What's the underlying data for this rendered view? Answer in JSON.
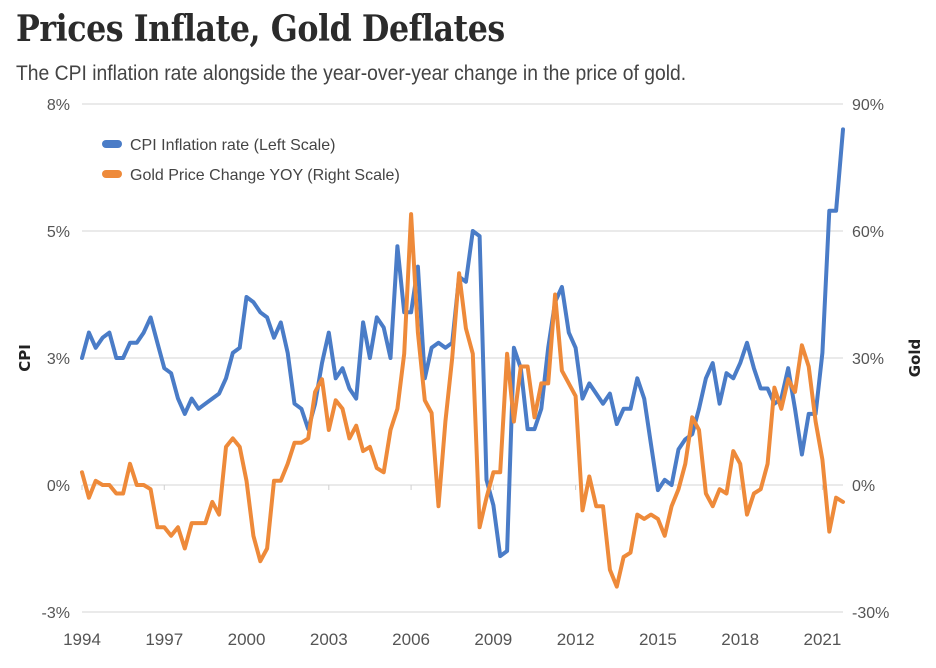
{
  "header": {
    "title": "Prices Inflate, Gold Deflates",
    "subtitle": "The CPI inflation rate alongside the year-over-year change in the price of gold."
  },
  "colors": {
    "cpi": "#4a7cc7",
    "gold": "#ee8a3a",
    "grid": "#dddddd"
  },
  "chart_data": {
    "type": "line",
    "title": "Prices Inflate, Gold Deflates",
    "subtitle": "The CPI inflation rate alongside the year-over-year change in the price of gold.",
    "xlabel": "",
    "ylabel": "CPI",
    "ylabel_right": "Gold",
    "x_start": 1994,
    "x_end": 2021.75,
    "frequency": "quarterly",
    "x_ticks": [
      "1994",
      "1997",
      "2000",
      "2003",
      "2006",
      "2009",
      "2012",
      "2015",
      "2018",
      "2021"
    ],
    "x_tick_values": [
      1994,
      1997,
      2000,
      2003,
      2006,
      2009,
      2012,
      2015,
      2018,
      2021
    ],
    "y_left": {
      "ylim": [
        -2.5,
        7.5
      ],
      "ticks": [
        7.5,
        5,
        2.5,
        0,
        -2.5
      ],
      "tick_labels": [
        "8%",
        "5%",
        "3%",
        "0%",
        "-3%"
      ]
    },
    "y_right": {
      "ylim": [
        -30,
        90
      ],
      "ticks": [
        90,
        60,
        30,
        0,
        -30
      ],
      "tick_labels": [
        "90%",
        "60%",
        "30%",
        "0%",
        "-30%"
      ]
    },
    "grid": true,
    "legend": "top-left",
    "series": [
      {
        "name": "CPI Inflation rate (Left Scale)",
        "axis": "left",
        "values": [
          2.5,
          3.0,
          2.7,
          2.9,
          3.0,
          2.5,
          2.5,
          2.8,
          2.8,
          3.0,
          3.3,
          2.8,
          2.3,
          2.2,
          1.7,
          1.4,
          1.7,
          1.5,
          1.6,
          1.7,
          1.8,
          2.1,
          2.6,
          2.7,
          3.7,
          3.6,
          3.4,
          3.3,
          2.9,
          3.2,
          2.6,
          1.6,
          1.5,
          1.1,
          1.6,
          2.4,
          3.0,
          2.1,
          2.3,
          1.9,
          1.7,
          3.2,
          2.5,
          3.3,
          3.1,
          2.5,
          4.7,
          3.4,
          3.4,
          4.3,
          2.1,
          2.7,
          2.8,
          2.7,
          2.8,
          4.1,
          4.0,
          5.0,
          4.9,
          0.1,
          -0.4,
          -1.4,
          -1.3,
          2.7,
          2.3,
          1.1,
          1.1,
          1.5,
          2.7,
          3.6,
          3.9,
          3.0,
          2.7,
          1.7,
          2.0,
          1.8,
          1.6,
          1.8,
          1.2,
          1.5,
          1.5,
          2.1,
          1.7,
          0.8,
          -0.1,
          0.1,
          0.0,
          0.7,
          0.9,
          1.0,
          1.5,
          2.1,
          2.4,
          1.6,
          2.2,
          2.1,
          2.4,
          2.8,
          2.3,
          1.9,
          1.9,
          1.6,
          1.7,
          2.3,
          1.5,
          0.6,
          1.4,
          1.4,
          2.6,
          5.4,
          5.4,
          7.0
        ]
      },
      {
        "name": "Gold Price Change YOY (Right Scale)",
        "axis": "right",
        "values": [
          3,
          -3,
          1,
          0,
          0,
          -2,
          -2,
          5,
          0,
          0,
          -1,
          -10,
          -10,
          -12,
          -10,
          -15,
          -9,
          -9,
          -9,
          -4,
          -7,
          9,
          11,
          9,
          1,
          -12,
          -18,
          -15,
          1,
          1,
          5,
          10,
          10,
          11,
          22,
          25,
          13,
          20,
          18,
          11,
          14,
          8,
          9,
          4,
          3,
          13,
          18,
          31,
          64,
          36,
          20,
          17,
          -5,
          15,
          30,
          50,
          37,
          31,
          -10,
          -3,
          3,
          3,
          31,
          15,
          28,
          28,
          16,
          24,
          24,
          45,
          27,
          24,
          21,
          -6,
          2,
          -5,
          -5,
          -20,
          -24,
          -17,
          -16,
          -7,
          -8,
          -7,
          -8,
          -12,
          -5,
          -1,
          5,
          16,
          13,
          -2,
          -5,
          -1,
          -2,
          8,
          5,
          -7,
          -2,
          -1,
          5,
          23,
          18,
          25,
          22,
          33,
          28,
          15,
          6,
          -11,
          -3,
          -4
        ]
      }
    ]
  }
}
